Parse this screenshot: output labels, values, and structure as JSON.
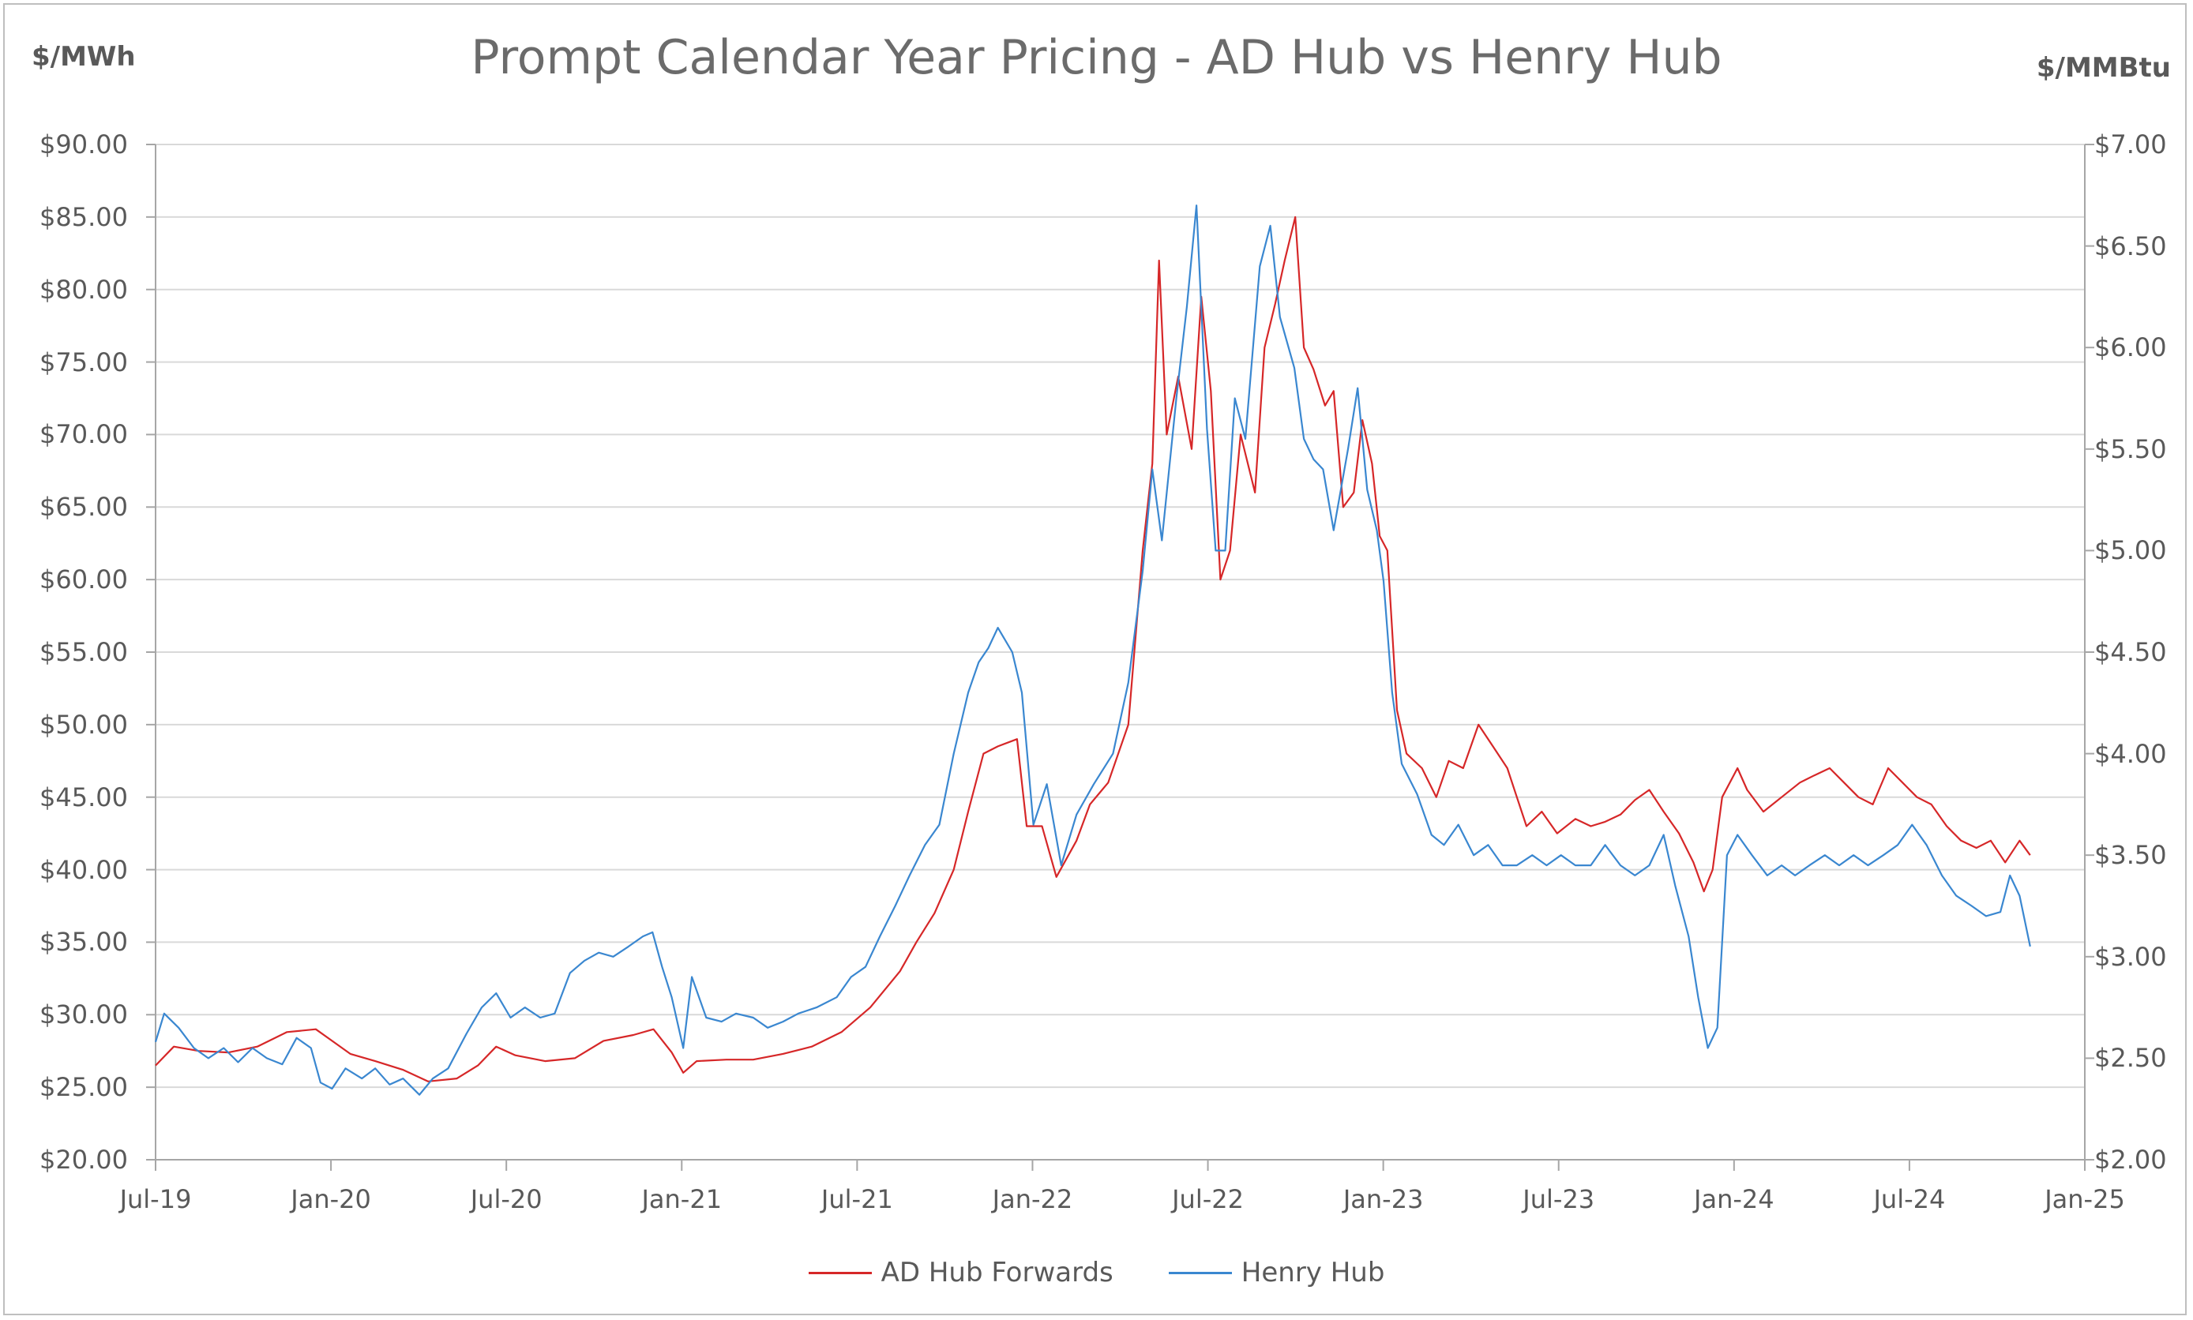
{
  "chart_data": {
    "type": "line",
    "title": "Prompt Calendar Year Pricing - AD Hub vs Henry Hub",
    "ylabel_left": "$/MWh",
    "ylabel_right": "$/MMBtu",
    "ylim_left": [
      20,
      90
    ],
    "ylim_right": [
      2.0,
      7.0
    ],
    "yticks_left": [
      "$90.00",
      "$85.00",
      "$80.00",
      "$75.00",
      "$70.00",
      "$65.00",
      "$60.00",
      "$55.00",
      "$50.00",
      "$45.00",
      "$40.00",
      "$35.00",
      "$30.00",
      "$25.00",
      "$20.00"
    ],
    "yticks_right": [
      "$7.00",
      "$6.50",
      "$6.00",
      "$5.50",
      "$5.00",
      "$4.50",
      "$4.00",
      "$3.50",
      "$3.00",
      "$2.50",
      "$2.00"
    ],
    "xticks": [
      "Jul-19",
      "Jan-20",
      "Jul-20",
      "Jan-21",
      "Jul-21",
      "Jan-22",
      "Jul-22",
      "Jan-23",
      "Jul-23",
      "Jan-24",
      "Jul-24",
      "Jan-25"
    ],
    "xlim": [
      "2019-07-01",
      "2025-01-01"
    ],
    "grid": true,
    "legend_position": "bottom",
    "series": [
      {
        "name": "AD Hub Forwards",
        "axis": "left",
        "color": "#d62728",
        "points": [
          [
            "2019-07-01",
            26.5
          ],
          [
            "2019-07-20",
            27.8
          ],
          [
            "2019-08-15",
            27.5
          ],
          [
            "2019-09-15",
            27.4
          ],
          [
            "2019-10-15",
            27.8
          ],
          [
            "2019-11-15",
            28.8
          ],
          [
            "2019-12-15",
            29.0
          ],
          [
            "2020-01-01",
            28.2
          ],
          [
            "2020-01-20",
            27.3
          ],
          [
            "2020-02-15",
            26.8
          ],
          [
            "2020-03-15",
            26.2
          ],
          [
            "2020-04-10",
            25.4
          ],
          [
            "2020-05-10",
            25.6
          ],
          [
            "2020-06-01",
            26.5
          ],
          [
            "2020-06-20",
            27.8
          ],
          [
            "2020-07-10",
            27.2
          ],
          [
            "2020-08-10",
            26.8
          ],
          [
            "2020-09-10",
            27.0
          ],
          [
            "2020-10-10",
            28.2
          ],
          [
            "2020-11-10",
            28.6
          ],
          [
            "2020-12-01",
            29.0
          ],
          [
            "2020-12-20",
            27.4
          ],
          [
            "2021-01-01",
            26.0
          ],
          [
            "2021-01-15",
            26.8
          ],
          [
            "2021-02-15",
            26.9
          ],
          [
            "2021-03-15",
            26.9
          ],
          [
            "2021-04-15",
            27.3
          ],
          [
            "2021-05-15",
            27.8
          ],
          [
            "2021-06-15",
            28.8
          ],
          [
            "2021-07-15",
            30.5
          ],
          [
            "2021-08-15",
            33.0
          ],
          [
            "2021-09-01",
            35.0
          ],
          [
            "2021-09-20",
            37.0
          ],
          [
            "2021-10-10",
            40.0
          ],
          [
            "2021-10-25",
            44.0
          ],
          [
            "2021-11-10",
            48.0
          ],
          [
            "2021-11-25",
            48.5
          ],
          [
            "2021-12-15",
            49.0
          ],
          [
            "2021-12-25",
            43.0
          ],
          [
            "2022-01-10",
            43.0
          ],
          [
            "2022-01-25",
            39.5
          ],
          [
            "2022-02-15",
            42.0
          ],
          [
            "2022-03-01",
            44.5
          ],
          [
            "2022-03-20",
            46.0
          ],
          [
            "2022-04-10",
            50.0
          ],
          [
            "2022-04-25",
            62.0
          ],
          [
            "2022-05-05",
            68.0
          ],
          [
            "2022-05-12",
            82.0
          ],
          [
            "2022-05-20",
            70.0
          ],
          [
            "2022-06-01",
            74.0
          ],
          [
            "2022-06-15",
            69.0
          ],
          [
            "2022-06-25",
            79.5
          ],
          [
            "2022-07-05",
            73.0
          ],
          [
            "2022-07-15",
            60.0
          ],
          [
            "2022-07-25",
            62.0
          ],
          [
            "2022-08-05",
            70.0
          ],
          [
            "2022-08-20",
            66.0
          ],
          [
            "2022-08-30",
            76.0
          ],
          [
            "2022-09-10",
            79.0
          ],
          [
            "2022-09-20",
            82.0
          ],
          [
            "2022-10-01",
            85.0
          ],
          [
            "2022-10-10",
            76.0
          ],
          [
            "2022-10-20",
            74.5
          ],
          [
            "2022-11-01",
            72.0
          ],
          [
            "2022-11-10",
            73.0
          ],
          [
            "2022-11-20",
            65.0
          ],
          [
            "2022-12-01",
            66.0
          ],
          [
            "2022-12-10",
            71.0
          ],
          [
            "2022-12-20",
            68.0
          ],
          [
            "2022-12-28",
            63.0
          ],
          [
            "2023-01-05",
            62.0
          ],
          [
            "2023-01-15",
            51.0
          ],
          [
            "2023-01-25",
            48.0
          ],
          [
            "2023-02-10",
            47.0
          ],
          [
            "2023-02-25",
            45.0
          ],
          [
            "2023-03-10",
            47.5
          ],
          [
            "2023-03-25",
            47.0
          ],
          [
            "2023-04-10",
            50.0
          ],
          [
            "2023-04-25",
            48.5
          ],
          [
            "2023-05-10",
            47.0
          ],
          [
            "2023-05-20",
            45.0
          ],
          [
            "2023-05-30",
            43.0
          ],
          [
            "2023-06-15",
            44.0
          ],
          [
            "2023-07-01",
            42.5
          ],
          [
            "2023-07-20",
            43.5
          ],
          [
            "2023-08-05",
            43.0
          ],
          [
            "2023-08-20",
            43.3
          ],
          [
            "2023-09-05",
            43.8
          ],
          [
            "2023-09-20",
            44.8
          ],
          [
            "2023-10-05",
            45.5
          ],
          [
            "2023-10-20",
            44.0
          ],
          [
            "2023-11-05",
            42.5
          ],
          [
            "2023-11-20",
            40.5
          ],
          [
            "2023-12-01",
            38.5
          ],
          [
            "2023-12-10",
            40.0
          ],
          [
            "2023-12-20",
            45.0
          ],
          [
            "2024-01-05",
            47.0
          ],
          [
            "2024-01-15",
            45.5
          ],
          [
            "2024-02-01",
            44.0
          ],
          [
            "2024-02-20",
            45.0
          ],
          [
            "2024-03-10",
            46.0
          ],
          [
            "2024-03-25",
            46.5
          ],
          [
            "2024-04-10",
            47.0
          ],
          [
            "2024-04-25",
            46.0
          ],
          [
            "2024-05-10",
            45.0
          ],
          [
            "2024-05-25",
            44.5
          ],
          [
            "2024-06-10",
            47.0
          ],
          [
            "2024-06-25",
            46.0
          ],
          [
            "2024-07-10",
            45.0
          ],
          [
            "2024-07-25",
            44.5
          ],
          [
            "2024-08-10",
            43.0
          ],
          [
            "2024-08-25",
            42.0
          ],
          [
            "2024-09-10",
            41.5
          ],
          [
            "2024-09-25",
            42.0
          ],
          [
            "2024-10-10",
            40.5
          ],
          [
            "2024-10-25",
            42.0
          ],
          [
            "2024-11-05",
            41.0
          ]
        ]
      },
      {
        "name": "Henry Hub",
        "axis": "right",
        "color": "#3a87d0",
        "points": [
          [
            "2019-07-01",
            2.58
          ],
          [
            "2019-07-10",
            2.72
          ],
          [
            "2019-07-25",
            2.65
          ],
          [
            "2019-08-10",
            2.55
          ],
          [
            "2019-08-25",
            2.5
          ],
          [
            "2019-09-10",
            2.55
          ],
          [
            "2019-09-25",
            2.48
          ],
          [
            "2019-10-10",
            2.55
          ],
          [
            "2019-10-25",
            2.5
          ],
          [
            "2019-11-10",
            2.47
          ],
          [
            "2019-11-25",
            2.6
          ],
          [
            "2019-12-10",
            2.55
          ],
          [
            "2019-12-20",
            2.38
          ],
          [
            "2020-01-01",
            2.35
          ],
          [
            "2020-01-15",
            2.45
          ],
          [
            "2020-02-01",
            2.4
          ],
          [
            "2020-02-15",
            2.45
          ],
          [
            "2020-03-01",
            2.37
          ],
          [
            "2020-03-15",
            2.4
          ],
          [
            "2020-04-01",
            2.32
          ],
          [
            "2020-04-15",
            2.4
          ],
          [
            "2020-05-01",
            2.45
          ],
          [
            "2020-05-20",
            2.62
          ],
          [
            "2020-06-05",
            2.75
          ],
          [
            "2020-06-20",
            2.82
          ],
          [
            "2020-07-05",
            2.7
          ],
          [
            "2020-07-20",
            2.75
          ],
          [
            "2020-08-05",
            2.7
          ],
          [
            "2020-08-20",
            2.72
          ],
          [
            "2020-09-05",
            2.92
          ],
          [
            "2020-09-20",
            2.98
          ],
          [
            "2020-10-05",
            3.02
          ],
          [
            "2020-10-20",
            3.0
          ],
          [
            "2020-11-05",
            3.05
          ],
          [
            "2020-11-20",
            3.1
          ],
          [
            "2020-11-30",
            3.12
          ],
          [
            "2020-12-10",
            2.95
          ],
          [
            "2020-12-20",
            2.8
          ],
          [
            "2021-01-01",
            2.55
          ],
          [
            "2021-01-10",
            2.9
          ],
          [
            "2021-01-25",
            2.7
          ],
          [
            "2021-02-10",
            2.68
          ],
          [
            "2021-02-25",
            2.72
          ],
          [
            "2021-03-15",
            2.7
          ],
          [
            "2021-03-30",
            2.65
          ],
          [
            "2021-04-15",
            2.68
          ],
          [
            "2021-05-01",
            2.72
          ],
          [
            "2021-05-20",
            2.75
          ],
          [
            "2021-06-10",
            2.8
          ],
          [
            "2021-06-25",
            2.9
          ],
          [
            "2021-07-10",
            2.95
          ],
          [
            "2021-07-25",
            3.1
          ],
          [
            "2021-08-10",
            3.25
          ],
          [
            "2021-08-25",
            3.4
          ],
          [
            "2021-09-10",
            3.55
          ],
          [
            "2021-09-25",
            3.65
          ],
          [
            "2021-10-10",
            4.0
          ],
          [
            "2021-10-25",
            4.3
          ],
          [
            "2021-11-05",
            4.45
          ],
          [
            "2021-11-15",
            4.52
          ],
          [
            "2021-11-25",
            4.62
          ],
          [
            "2021-12-10",
            4.5
          ],
          [
            "2021-12-20",
            4.3
          ],
          [
            "2022-01-01",
            3.65
          ],
          [
            "2022-01-15",
            3.85
          ],
          [
            "2022-01-30",
            3.45
          ],
          [
            "2022-02-15",
            3.7
          ],
          [
            "2022-03-05",
            3.85
          ],
          [
            "2022-03-25",
            4.0
          ],
          [
            "2022-04-10",
            4.35
          ],
          [
            "2022-04-25",
            4.9
          ],
          [
            "2022-05-05",
            5.4
          ],
          [
            "2022-05-15",
            5.05
          ],
          [
            "2022-05-30",
            5.75
          ],
          [
            "2022-06-10",
            6.2
          ],
          [
            "2022-06-20",
            6.7
          ],
          [
            "2022-07-01",
            5.6
          ],
          [
            "2022-07-10",
            5.0
          ],
          [
            "2022-07-20",
            5.0
          ],
          [
            "2022-07-30",
            5.75
          ],
          [
            "2022-08-10",
            5.55
          ],
          [
            "2022-08-25",
            6.4
          ],
          [
            "2022-09-05",
            6.6
          ],
          [
            "2022-09-15",
            6.15
          ],
          [
            "2022-09-30",
            5.9
          ],
          [
            "2022-10-10",
            5.55
          ],
          [
            "2022-10-20",
            5.45
          ],
          [
            "2022-10-30",
            5.4
          ],
          [
            "2022-11-10",
            5.1
          ],
          [
            "2022-11-25",
            5.5
          ],
          [
            "2022-12-05",
            5.8
          ],
          [
            "2022-12-15",
            5.3
          ],
          [
            "2022-12-25",
            5.1
          ],
          [
            "2023-01-01",
            4.85
          ],
          [
            "2023-01-10",
            4.3
          ],
          [
            "2023-01-20",
            3.95
          ],
          [
            "2023-02-05",
            3.8
          ],
          [
            "2023-02-20",
            3.6
          ],
          [
            "2023-03-05",
            3.55
          ],
          [
            "2023-03-20",
            3.65
          ],
          [
            "2023-04-05",
            3.5
          ],
          [
            "2023-04-20",
            3.55
          ],
          [
            "2023-05-05",
            3.45
          ],
          [
            "2023-05-20",
            3.45
          ],
          [
            "2023-06-05",
            3.5
          ],
          [
            "2023-06-20",
            3.45
          ],
          [
            "2023-07-05",
            3.5
          ],
          [
            "2023-07-20",
            3.45
          ],
          [
            "2023-08-05",
            3.45
          ],
          [
            "2023-08-20",
            3.55
          ],
          [
            "2023-09-05",
            3.45
          ],
          [
            "2023-09-20",
            3.4
          ],
          [
            "2023-10-05",
            3.45
          ],
          [
            "2023-10-20",
            3.6
          ],
          [
            "2023-11-01",
            3.35
          ],
          [
            "2023-11-15",
            3.1
          ],
          [
            "2023-11-25",
            2.8
          ],
          [
            "2023-12-05",
            2.55
          ],
          [
            "2023-12-15",
            2.65
          ],
          [
            "2023-12-25",
            3.5
          ],
          [
            "2024-01-05",
            3.6
          ],
          [
            "2024-01-20",
            3.5
          ],
          [
            "2024-02-05",
            3.4
          ],
          [
            "2024-02-20",
            3.45
          ],
          [
            "2024-03-05",
            3.4
          ],
          [
            "2024-03-20",
            3.45
          ],
          [
            "2024-04-05",
            3.5
          ],
          [
            "2024-04-20",
            3.45
          ],
          [
            "2024-05-05",
            3.5
          ],
          [
            "2024-05-20",
            3.45
          ],
          [
            "2024-06-05",
            3.5
          ],
          [
            "2024-06-20",
            3.55
          ],
          [
            "2024-07-05",
            3.65
          ],
          [
            "2024-07-20",
            3.55
          ],
          [
            "2024-08-05",
            3.4
          ],
          [
            "2024-08-20",
            3.3
          ],
          [
            "2024-09-05",
            3.25
          ],
          [
            "2024-09-20",
            3.2
          ],
          [
            "2024-10-05",
            3.22
          ],
          [
            "2024-10-15",
            3.4
          ],
          [
            "2024-10-25",
            3.3
          ],
          [
            "2024-11-05",
            3.05
          ]
        ]
      }
    ]
  }
}
